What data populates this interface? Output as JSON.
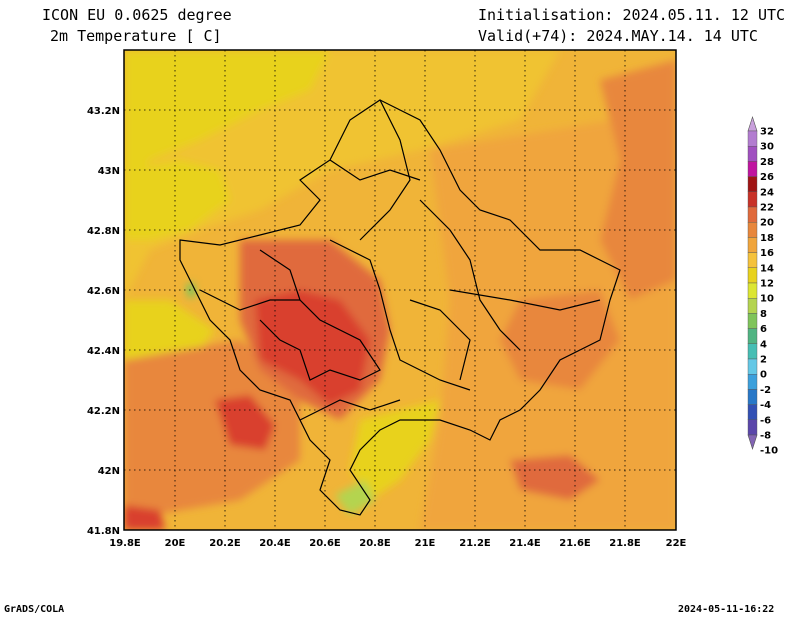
{
  "header": {
    "model": "ICON EU 0.0625 degree",
    "variable": "2m Temperature [ C]",
    "init": "Initialisation: 2024.05.11. 12 UTC",
    "valid": "Valid(+74): 2024.MAY.14. 14 UTC"
  },
  "map": {
    "lon_range": [
      19.8,
      22.0
    ],
    "lat_range": [
      41.8,
      43.4
    ],
    "x_ticks": [
      "19.8E",
      "20E",
      "20.2E",
      "20.4E",
      "20.6E",
      "20.8E",
      "21E",
      "21.2E",
      "21.4E",
      "21.6E",
      "21.8E",
      "22E"
    ],
    "y_ticks": [
      "41.8N",
      "42N",
      "42.2N",
      "42.4N",
      "42.6N",
      "42.8N",
      "43N",
      "43.2N"
    ],
    "grid": "dotted",
    "colors": {
      "yellow": "#e8d21e",
      "yellow_orange": "#f0c332",
      "orange": "#f0a53c",
      "dark_orange": "#e8873c",
      "red_orange": "#e06a3c",
      "red": "#d9412f",
      "green_light": "#b4d450",
      "green": "#7fc45a"
    }
  },
  "colorbar": {
    "labels": [
      "32",
      "30",
      "28",
      "26",
      "24",
      "22",
      "20",
      "18",
      "16",
      "14",
      "12",
      "10",
      "8",
      "6",
      "4",
      "2",
      "0",
      "-2",
      "-4",
      "-6",
      "-8",
      "-10"
    ],
    "colors": [
      "#c9a0dc",
      "#b27cd0",
      "#a050c0",
      "#c014a0",
      "#a01414",
      "#c83228",
      "#e06a3c",
      "#e8873c",
      "#f0a53c",
      "#f5c23c",
      "#e8d21e",
      "#dce632",
      "#b4d450",
      "#7fc45a",
      "#50b482",
      "#46beb4",
      "#64c8e6",
      "#3ca0dc",
      "#2878c8",
      "#3250b4",
      "#5a46aa",
      "#8264b4"
    ]
  },
  "footer": {
    "left": "GrADS/COLA",
    "right": "2024-05-11-16:22"
  }
}
